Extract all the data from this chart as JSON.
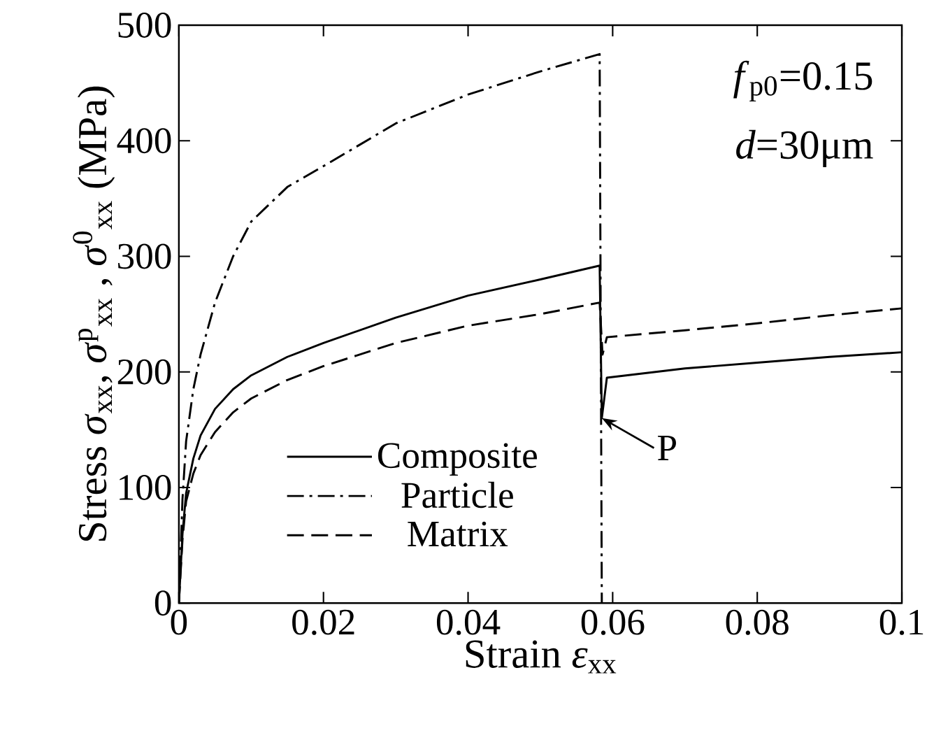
{
  "chart_data": {
    "type": "line",
    "xlabel": "Strain  *ε*$_{xx}$",
    "ylabel": "Stress *σ*$_{xx}$, *σ*$^{p}$$_{xx}$ , *σ*$^{0}$$_{xx}$ (MPa)",
    "xlim": [
      0,
      0.1
    ],
    "ylim": [
      0,
      500
    ],
    "xticks": [
      0,
      0.02,
      0.04,
      0.06,
      0.08,
      0.1
    ],
    "yticks": [
      0,
      100,
      200,
      300,
      400,
      500
    ],
    "legend": "bottom",
    "series": [
      {
        "name": "Composite",
        "color": "#000000",
        "line_style": "solid",
        "x": [
          0,
          0.0005,
          0.001,
          0.002,
          0.003,
          0.005,
          0.0075,
          0.01,
          0.015,
          0.02,
          0.03,
          0.04,
          0.05,
          0.0582,
          0.0585,
          0.0592,
          0.07,
          0.08,
          0.09,
          0.1
        ],
        "values": [
          0,
          60,
          95,
          125,
          145,
          168,
          185,
          197,
          213,
          225,
          247,
          266,
          280,
          292,
          160,
          195,
          203,
          208,
          213,
          217
        ]
      },
      {
        "name": "Particle",
        "color": "#000000",
        "line_style": "dashdot",
        "x": [
          0,
          0.0005,
          0.001,
          0.002,
          0.003,
          0.005,
          0.0075,
          0.01,
          0.015,
          0.02,
          0.03,
          0.04,
          0.05,
          0.0582,
          0.0585
        ],
        "values": [
          0,
          90,
          140,
          185,
          215,
          260,
          300,
          330,
          360,
          378,
          415,
          440,
          460,
          475,
          0
        ]
      },
      {
        "name": "Matrix",
        "color": "#000000",
        "line_style": "dashed",
        "x": [
          0,
          0.0005,
          0.001,
          0.002,
          0.003,
          0.005,
          0.0075,
          0.01,
          0.015,
          0.02,
          0.03,
          0.04,
          0.05,
          0.0582,
          0.0586,
          0.0592,
          0.07,
          0.08,
          0.09,
          0.1
        ],
        "values": [
          0,
          55,
          88,
          112,
          128,
          148,
          165,
          177,
          193,
          205,
          225,
          240,
          250,
          260,
          215,
          230,
          236,
          242,
          249,
          255
        ]
      }
    ],
    "annotations": [
      "*f*$_{p0}$=0.15",
      "*d*=30μm",
      {
        "text": "P",
        "x": 0.0585,
        "y": 160
      }
    ]
  }
}
